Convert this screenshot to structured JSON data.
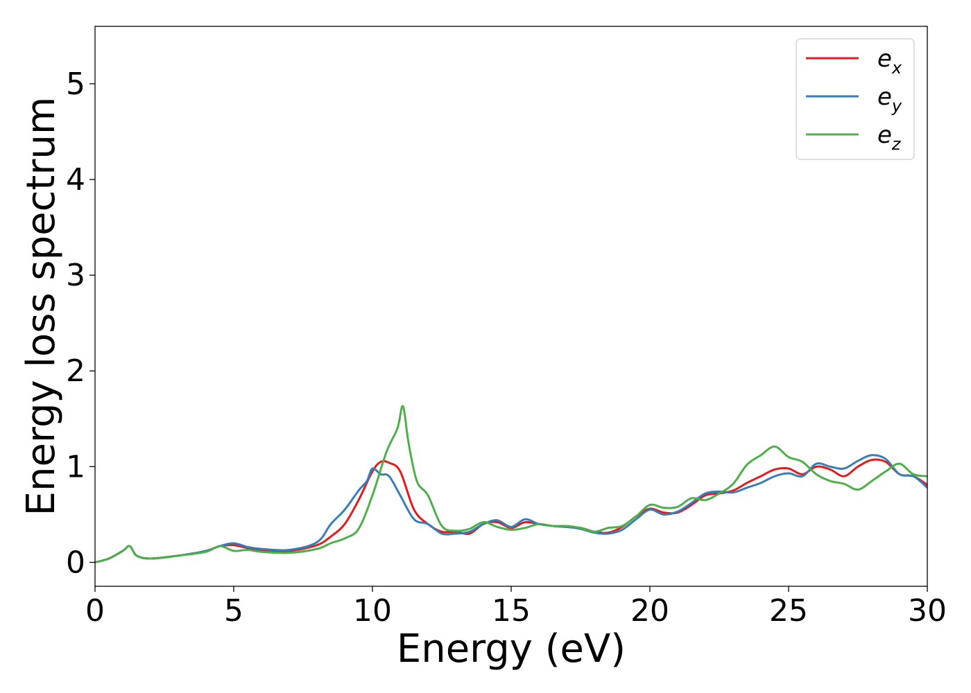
{
  "chart_data": {
    "type": "line",
    "title": "",
    "xlabel": "Energy (eV)",
    "ylabel": "Energy loss spectrum",
    "xlim": [
      0,
      30
    ],
    "ylim": [
      -0.25,
      5.6
    ],
    "xticks": [
      0,
      5,
      10,
      15,
      20,
      25,
      30
    ],
    "yticks": [
      0,
      1,
      2,
      3,
      4,
      5
    ],
    "grid": false,
    "legend_position": "top-right",
    "series": [
      {
        "name": "e_x",
        "legend_base": "e",
        "legend_sub": "x",
        "color": "#e41a1c",
        "x": [
          0,
          0.5,
          1.0,
          1.25,
          1.5,
          2.0,
          3.0,
          4.0,
          4.5,
          5.0,
          5.5,
          6.0,
          7.0,
          8.0,
          8.5,
          9.0,
          9.5,
          10.0,
          10.3,
          10.6,
          11.0,
          11.5,
          12.0,
          12.5,
          13.0,
          13.5,
          14.0,
          14.5,
          15.0,
          15.5,
          16.0,
          16.5,
          17.0,
          17.5,
          18.0,
          18.5,
          19.0,
          19.5,
          20.0,
          20.5,
          21.0,
          21.5,
          22.0,
          22.5,
          23.0,
          23.5,
          24.0,
          24.5,
          25.0,
          25.5,
          26.0,
          26.5,
          27.0,
          27.5,
          28.0,
          28.5,
          29.0,
          29.5,
          30.0
        ],
        "y": [
          0.0,
          0.04,
          0.12,
          0.17,
          0.07,
          0.04,
          0.07,
          0.12,
          0.17,
          0.18,
          0.15,
          0.13,
          0.12,
          0.18,
          0.27,
          0.4,
          0.65,
          0.95,
          1.05,
          1.04,
          0.95,
          0.55,
          0.4,
          0.32,
          0.32,
          0.3,
          0.4,
          0.42,
          0.36,
          0.42,
          0.4,
          0.38,
          0.37,
          0.36,
          0.32,
          0.31,
          0.37,
          0.48,
          0.56,
          0.52,
          0.52,
          0.6,
          0.7,
          0.72,
          0.75,
          0.83,
          0.9,
          0.97,
          0.98,
          0.92,
          1.0,
          0.97,
          0.9,
          1.0,
          1.07,
          1.05,
          0.92,
          0.9,
          0.81
        ]
      },
      {
        "name": "e_y",
        "legend_base": "e",
        "legend_sub": "y",
        "color": "#377eb8",
        "x": [
          0,
          0.5,
          1.0,
          1.25,
          1.5,
          2.0,
          3.0,
          4.0,
          4.5,
          5.0,
          5.5,
          6.0,
          7.0,
          8.0,
          8.5,
          9.0,
          9.5,
          9.8,
          10.0,
          10.3,
          10.6,
          11.0,
          11.5,
          12.0,
          12.5,
          13.0,
          13.5,
          14.0,
          14.5,
          15.0,
          15.5,
          16.0,
          16.5,
          17.0,
          17.5,
          18.0,
          18.5,
          19.0,
          19.5,
          20.0,
          20.5,
          21.0,
          21.5,
          22.0,
          22.5,
          23.0,
          23.5,
          24.0,
          24.5,
          25.0,
          25.5,
          26.0,
          26.5,
          27.0,
          27.5,
          28.0,
          28.5,
          29.0,
          29.5,
          30.0
        ],
        "y": [
          0.0,
          0.04,
          0.12,
          0.17,
          0.07,
          0.04,
          0.07,
          0.12,
          0.17,
          0.2,
          0.16,
          0.14,
          0.13,
          0.21,
          0.4,
          0.55,
          0.75,
          0.85,
          0.98,
          0.92,
          0.9,
          0.7,
          0.45,
          0.4,
          0.3,
          0.3,
          0.32,
          0.4,
          0.44,
          0.37,
          0.45,
          0.4,
          0.38,
          0.37,
          0.35,
          0.31,
          0.3,
          0.34,
          0.45,
          0.55,
          0.5,
          0.53,
          0.62,
          0.72,
          0.74,
          0.73,
          0.78,
          0.83,
          0.9,
          0.93,
          0.9,
          1.03,
          1.0,
          0.98,
          1.06,
          1.12,
          1.08,
          0.92,
          0.9,
          0.78
        ]
      },
      {
        "name": "e_z",
        "legend_base": "e",
        "legend_sub": "z",
        "color": "#4daf4a",
        "x": [
          0,
          0.5,
          1.0,
          1.25,
          1.5,
          2.0,
          3.0,
          4.0,
          4.5,
          5.0,
          5.5,
          6.0,
          7.0,
          8.0,
          8.5,
          9.0,
          9.5,
          10.0,
          10.5,
          10.9,
          11.1,
          11.3,
          11.6,
          12.0,
          12.5,
          13.0,
          13.5,
          14.0,
          14.5,
          15.0,
          15.5,
          16.0,
          16.5,
          17.0,
          17.5,
          18.0,
          18.5,
          19.0,
          19.5,
          20.0,
          20.5,
          21.0,
          21.5,
          22.0,
          22.5,
          23.0,
          23.5,
          24.0,
          24.5,
          25.0,
          25.5,
          26.0,
          26.5,
          27.0,
          27.5,
          28.0,
          28.5,
          29.0,
          29.5,
          30.0
        ],
        "y": [
          0.0,
          0.04,
          0.12,
          0.17,
          0.07,
          0.04,
          0.07,
          0.11,
          0.17,
          0.12,
          0.13,
          0.11,
          0.1,
          0.14,
          0.2,
          0.25,
          0.35,
          0.7,
          1.15,
          1.4,
          1.63,
          1.25,
          0.85,
          0.7,
          0.38,
          0.33,
          0.35,
          0.42,
          0.37,
          0.34,
          0.36,
          0.4,
          0.38,
          0.38,
          0.36,
          0.32,
          0.36,
          0.38,
          0.48,
          0.6,
          0.57,
          0.58,
          0.67,
          0.65,
          0.72,
          0.82,
          1.02,
          1.12,
          1.21,
          1.1,
          1.05,
          0.92,
          0.85,
          0.82,
          0.76,
          0.85,
          0.95,
          1.03,
          0.92,
          0.9
        ]
      }
    ]
  }
}
